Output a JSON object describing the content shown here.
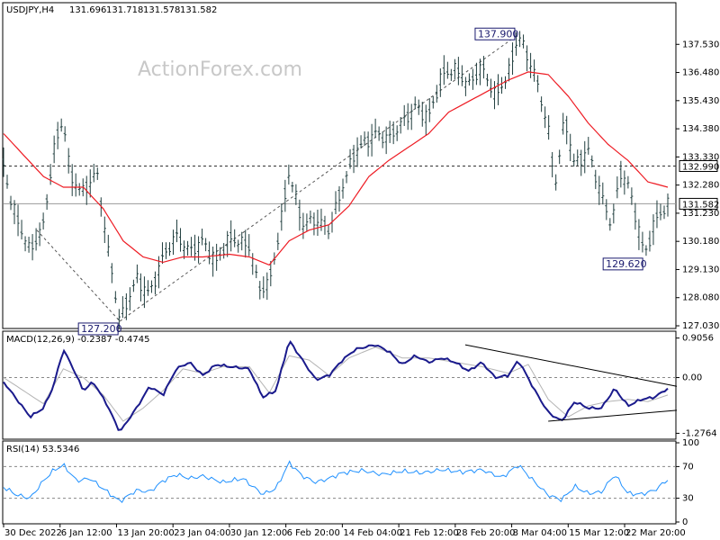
{
  "chart_data": {
    "type": "line",
    "watermark": "ActionForex.com",
    "price_panel": {
      "header": {
        "symbol": "USDJPY,H4",
        "open": "131.696",
        "high": "131.718",
        "low": "131.578",
        "close": "131.582"
      },
      "ylim": [
        127.03,
        138.58
      ],
      "ytick_values": [
        137.53,
        136.48,
        135.43,
        134.38,
        133.33,
        132.28,
        131.23,
        130.18,
        129.13,
        128.08,
        127.03
      ],
      "ytick_labels": [
        "137.530",
        "136.480",
        "135.430",
        "134.380",
        "133.330",
        "132.280",
        "131.230",
        "130.180",
        "129.130",
        "128.080",
        "127.030"
      ],
      "current_price": {
        "value": 131.582,
        "label": "131.582"
      },
      "resistance_level": {
        "value": 132.99,
        "label": "132.990"
      },
      "annotations": [
        {
          "label": "137.900",
          "value": 137.9,
          "x_frac": 0.775
        },
        {
          "label": "127.200",
          "value": 127.2,
          "x_frac": 0.175
        },
        {
          "label": "129.620",
          "value": 129.62,
          "x_frac": 0.965
        }
      ],
      "channel_line": {
        "from": {
          "x_frac": 0.05,
          "value": 130.6
        },
        "to": {
          "x_frac": 0.775,
          "value": 137.9
        },
        "anchor": {
          "x_frac": 0.175,
          "value": 127.2
        }
      },
      "price_anchors": [
        [
          0.0,
          133.0
        ],
        [
          0.01,
          131.8
        ],
        [
          0.02,
          131.0
        ],
        [
          0.04,
          129.8
        ],
        [
          0.06,
          130.8
        ],
        [
          0.075,
          133.5
        ],
        [
          0.09,
          134.8
        ],
        [
          0.1,
          132.6
        ],
        [
          0.12,
          132.0
        ],
        [
          0.14,
          132.8
        ],
        [
          0.155,
          130.2
        ],
        [
          0.175,
          127.2
        ],
        [
          0.2,
          128.8
        ],
        [
          0.22,
          128.2
        ],
        [
          0.24,
          129.6
        ],
        [
          0.26,
          130.4
        ],
        [
          0.28,
          129.8
        ],
        [
          0.3,
          130.2
        ],
        [
          0.32,
          129.4
        ],
        [
          0.34,
          130.3
        ],
        [
          0.37,
          130.0
        ],
        [
          0.385,
          128.4
        ],
        [
          0.4,
          128.6
        ],
        [
          0.415,
          130.5
        ],
        [
          0.43,
          132.8
        ],
        [
          0.45,
          130.8
        ],
        [
          0.47,
          131.0
        ],
        [
          0.49,
          130.6
        ],
        [
          0.51,
          132.2
        ],
        [
          0.53,
          133.6
        ],
        [
          0.56,
          134.2
        ],
        [
          0.58,
          134.0
        ],
        [
          0.6,
          134.6
        ],
        [
          0.62,
          135.2
        ],
        [
          0.64,
          134.8
        ],
        [
          0.66,
          136.4
        ],
        [
          0.68,
          136.6
        ],
        [
          0.7,
          136.0
        ],
        [
          0.72,
          136.7
        ],
        [
          0.74,
          135.6
        ],
        [
          0.76,
          136.4
        ],
        [
          0.775,
          137.9
        ],
        [
          0.8,
          136.4
        ],
        [
          0.82,
          134.4
        ],
        [
          0.83,
          132.2
        ],
        [
          0.845,
          134.8
        ],
        [
          0.86,
          133.0
        ],
        [
          0.88,
          133.6
        ],
        [
          0.9,
          131.9
        ],
        [
          0.915,
          130.8
        ],
        [
          0.93,
          132.8
        ],
        [
          0.94,
          132.3
        ],
        [
          0.955,
          130.8
        ],
        [
          0.965,
          129.62
        ],
        [
          0.98,
          130.9
        ],
        [
          1.0,
          131.58
        ]
      ],
      "ma_anchors": [
        [
          0.0,
          134.2
        ],
        [
          0.03,
          133.4
        ],
        [
          0.06,
          132.6
        ],
        [
          0.09,
          132.2
        ],
        [
          0.12,
          132.2
        ],
        [
          0.15,
          131.4
        ],
        [
          0.18,
          130.2
        ],
        [
          0.21,
          129.6
        ],
        [
          0.24,
          129.4
        ],
        [
          0.27,
          129.6
        ],
        [
          0.3,
          129.6
        ],
        [
          0.34,
          129.7
        ],
        [
          0.37,
          129.6
        ],
        [
          0.4,
          129.3
        ],
        [
          0.43,
          130.2
        ],
        [
          0.46,
          130.6
        ],
        [
          0.49,
          130.8
        ],
        [
          0.52,
          131.5
        ],
        [
          0.55,
          132.6
        ],
        [
          0.58,
          133.2
        ],
        [
          0.61,
          133.7
        ],
        [
          0.64,
          134.2
        ],
        [
          0.67,
          135.0
        ],
        [
          0.7,
          135.4
        ],
        [
          0.73,
          135.8
        ],
        [
          0.76,
          136.2
        ],
        [
          0.79,
          136.5
        ],
        [
          0.82,
          136.4
        ],
        [
          0.85,
          135.6
        ],
        [
          0.88,
          134.6
        ],
        [
          0.91,
          133.8
        ],
        [
          0.94,
          133.2
        ],
        [
          0.97,
          132.4
        ],
        [
          1.0,
          132.2
        ]
      ]
    },
    "macd_panel": {
      "header": "MACD(12,26,9) -0.2387 -0.4745",
      "ylim": [
        -1.35,
        0.98
      ],
      "ytick_values": [
        0.9056,
        0.0,
        -1.2764
      ],
      "ytick_labels": [
        "0.9056",
        "0.00",
        "-1.2764"
      ],
      "zero_label": "0.00",
      "macd_anchors": [
        [
          0.0,
          -0.1
        ],
        [
          0.02,
          -0.5
        ],
        [
          0.04,
          -0.9
        ],
        [
          0.06,
          -0.7
        ],
        [
          0.075,
          -0.2
        ],
        [
          0.09,
          0.65
        ],
        [
          0.105,
          0.2
        ],
        [
          0.12,
          -0.3
        ],
        [
          0.135,
          -0.1
        ],
        [
          0.155,
          -0.6
        ],
        [
          0.175,
          -1.25
        ],
        [
          0.2,
          -0.7
        ],
        [
          0.22,
          -0.2
        ],
        [
          0.24,
          -0.4
        ],
        [
          0.26,
          0.2
        ],
        [
          0.28,
          0.35
        ],
        [
          0.3,
          0.05
        ],
        [
          0.32,
          0.3
        ],
        [
          0.34,
          0.25
        ],
        [
          0.37,
          0.2
        ],
        [
          0.39,
          -0.45
        ],
        [
          0.41,
          -0.3
        ],
        [
          0.43,
          0.85
        ],
        [
          0.45,
          0.4
        ],
        [
          0.47,
          -0.05
        ],
        [
          0.49,
          0.05
        ],
        [
          0.51,
          0.4
        ],
        [
          0.53,
          0.65
        ],
        [
          0.56,
          0.75
        ],
        [
          0.58,
          0.6
        ],
        [
          0.6,
          0.3
        ],
        [
          0.62,
          0.5
        ],
        [
          0.64,
          0.35
        ],
        [
          0.66,
          0.45
        ],
        [
          0.68,
          0.35
        ],
        [
          0.7,
          0.15
        ],
        [
          0.72,
          0.35
        ],
        [
          0.74,
          0.0
        ],
        [
          0.76,
          0.05
        ],
        [
          0.775,
          0.4
        ],
        [
          0.8,
          -0.3
        ],
        [
          0.82,
          -0.8
        ],
        [
          0.84,
          -1.0
        ],
        [
          0.86,
          -0.55
        ],
        [
          0.88,
          -0.7
        ],
        [
          0.9,
          -0.7
        ],
        [
          0.92,
          -0.25
        ],
        [
          0.94,
          -0.65
        ],
        [
          0.96,
          -0.5
        ],
        [
          0.98,
          -0.45
        ],
        [
          1.0,
          -0.25
        ]
      ],
      "signal_anchors": [
        [
          0.0,
          0.0
        ],
        [
          0.03,
          -0.3
        ],
        [
          0.06,
          -0.6
        ],
        [
          0.09,
          0.2
        ],
        [
          0.12,
          0.0
        ],
        [
          0.15,
          -0.4
        ],
        [
          0.18,
          -1.0
        ],
        [
          0.21,
          -0.7
        ],
        [
          0.24,
          -0.3
        ],
        [
          0.27,
          0.2
        ],
        [
          0.3,
          0.1
        ],
        [
          0.33,
          0.25
        ],
        [
          0.37,
          0.25
        ],
        [
          0.4,
          -0.35
        ],
        [
          0.43,
          0.5
        ],
        [
          0.46,
          0.4
        ],
        [
          0.49,
          0.05
        ],
        [
          0.52,
          0.45
        ],
        [
          0.56,
          0.7
        ],
        [
          0.6,
          0.45
        ],
        [
          0.64,
          0.45
        ],
        [
          0.68,
          0.35
        ],
        [
          0.72,
          0.25
        ],
        [
          0.76,
          0.1
        ],
        [
          0.79,
          0.3
        ],
        [
          0.82,
          -0.5
        ],
        [
          0.85,
          -0.9
        ],
        [
          0.88,
          -0.65
        ],
        [
          0.91,
          -0.55
        ],
        [
          0.94,
          -0.5
        ],
        [
          0.97,
          -0.55
        ],
        [
          1.0,
          -0.4
        ]
      ],
      "trendlines": [
        {
          "from": {
            "x_frac": 0.695,
            "value": 0.75
          },
          "to": {
            "x_frac": 1.0,
            "value": -0.2
          }
        },
        {
          "from": {
            "x_frac": 0.82,
            "value": -1.0
          },
          "to": {
            "x_frac": 1.0,
            "value": -0.75
          }
        }
      ]
    },
    "rsi_panel": {
      "header": "RSI(14) 53.5346",
      "ylim": [
        0,
        100
      ],
      "ytick_values": [
        100,
        70,
        30,
        0
      ],
      "ytick_labels": [
        "100",
        "70",
        "30",
        "0"
      ],
      "levels": [
        70,
        30
      ],
      "rsi_anchors": [
        [
          0.0,
          44
        ],
        [
          0.02,
          34
        ],
        [
          0.04,
          30
        ],
        [
          0.06,
          52
        ],
        [
          0.075,
          65
        ],
        [
          0.09,
          72
        ],
        [
          0.11,
          52
        ],
        [
          0.13,
          55
        ],
        [
          0.15,
          42
        ],
        [
          0.175,
          26
        ],
        [
          0.2,
          40
        ],
        [
          0.22,
          38
        ],
        [
          0.24,
          52
        ],
        [
          0.26,
          60
        ],
        [
          0.28,
          55
        ],
        [
          0.3,
          58
        ],
        [
          0.33,
          50
        ],
        [
          0.36,
          55
        ],
        [
          0.39,
          35
        ],
        [
          0.41,
          42
        ],
        [
          0.43,
          75
        ],
        [
          0.45,
          58
        ],
        [
          0.47,
          50
        ],
        [
          0.49,
          55
        ],
        [
          0.51,
          62
        ],
        [
          0.54,
          65
        ],
        [
          0.57,
          60
        ],
        [
          0.6,
          64
        ],
        [
          0.63,
          62
        ],
        [
          0.66,
          66
        ],
        [
          0.69,
          63
        ],
        [
          0.72,
          66
        ],
        [
          0.75,
          56
        ],
        [
          0.775,
          72
        ],
        [
          0.8,
          50
        ],
        [
          0.82,
          34
        ],
        [
          0.84,
          28
        ],
        [
          0.86,
          45
        ],
        [
          0.88,
          36
        ],
        [
          0.9,
          38
        ],
        [
          0.92,
          60
        ],
        [
          0.94,
          36
        ],
        [
          0.96,
          35
        ],
        [
          0.98,
          40
        ],
        [
          1.0,
          53.5
        ]
      ]
    },
    "x_tick_labels": [
      "30 Dec 2022",
      "6 Jan 12:00",
      "13 Jan 20:00",
      "23 Jan 04:00",
      "30 Jan 12:00",
      "6 Feb 20:00",
      "14 Feb 04:00",
      "21 Feb 12:00",
      "28 Feb 20:00",
      "8 Mar 04:00",
      "15 Mar 12:00",
      "22 Mar 20:00"
    ],
    "x_tick_fracs": [
      0.0,
      0.085,
      0.17,
      0.255,
      0.34,
      0.425,
      0.51,
      0.595,
      0.68,
      0.765,
      0.85,
      0.935
    ],
    "colors": {
      "bars": "#1f3d3d",
      "ma": "#ee1c24",
      "macd": "#1a1a8c",
      "signal": "#b4b4b4",
      "rsi": "#1e90ff",
      "channel": "#555555",
      "tag_fill": "#ffffff",
      "tag_border": "#1a1a6e"
    }
  }
}
